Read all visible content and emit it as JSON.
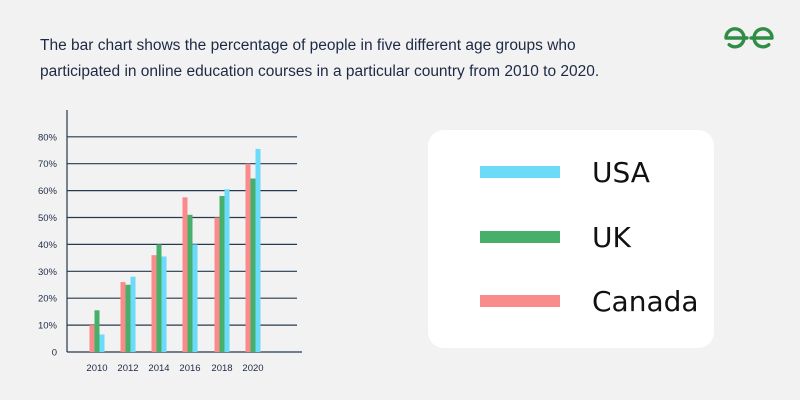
{
  "header": {
    "line1": "The bar chart shows the percentage of people in five different age groups who",
    "line2": "participated in online education courses in a particular country from 2010 to 2020."
  },
  "logo": {
    "icon": "geeksforgeeks-logo-icon",
    "color": "#2f8d46"
  },
  "colors": {
    "USA": "#6cdbfa",
    "UK": "#46b06a",
    "Canada": "#f98b8b",
    "axis": "#243a4e",
    "text": "#1d2a44"
  },
  "chart_data": {
    "type": "bar",
    "categories": [
      "2010",
      "2012",
      "2014",
      "2016",
      "2018",
      "2020"
    ],
    "series": [
      {
        "name": "Canada",
        "values": [
          10,
          26,
          36,
          57.5,
          50,
          70
        ]
      },
      {
        "name": "UK",
        "values": [
          15.5,
          25,
          40,
          51,
          58,
          64.5
        ]
      },
      {
        "name": "USA",
        "values": [
          6.5,
          28,
          35.5,
          40,
          60.5,
          75.5
        ]
      }
    ],
    "yticks": [
      "0",
      "10%",
      "20%",
      "30%",
      "40%",
      "50%",
      "60%",
      "70%",
      "80%"
    ],
    "ylim": [
      0,
      80
    ],
    "grid": true,
    "legend_position": "right"
  },
  "legend": [
    {
      "label": "USA"
    },
    {
      "label": "UK"
    },
    {
      "label": "Canada"
    }
  ]
}
